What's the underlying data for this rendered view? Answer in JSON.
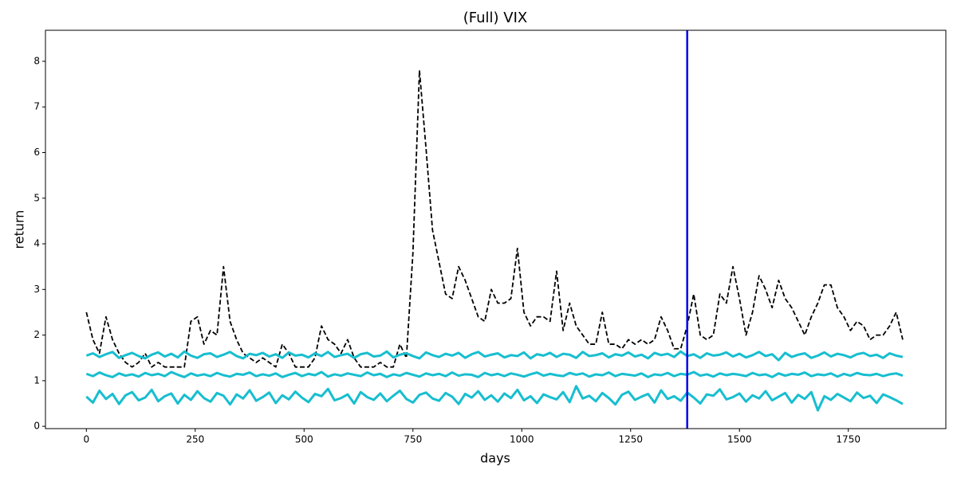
{
  "chart_data": {
    "type": "line",
    "title": "(Full) VIX",
    "xlabel": "days",
    "ylabel": "return",
    "xlim": [
      -94,
      1974
    ],
    "ylim": [
      -0.05,
      8.68
    ],
    "xticks": [
      0,
      250,
      500,
      750,
      1000,
      1250,
      1500,
      1750
    ],
    "yticks": [
      0,
      1,
      2,
      3,
      4,
      5,
      6,
      7,
      8
    ],
    "vline": 1380,
    "vline_color": "#0000ee",
    "x": [
      0,
      15,
      30,
      45,
      60,
      75,
      90,
      105,
      120,
      135,
      150,
      165,
      180,
      195,
      210,
      225,
      240,
      255,
      270,
      285,
      300,
      315,
      330,
      345,
      360,
      375,
      390,
      405,
      420,
      435,
      450,
      465,
      480,
      495,
      510,
      525,
      540,
      555,
      570,
      585,
      600,
      615,
      630,
      645,
      660,
      675,
      690,
      705,
      720,
      735,
      750,
      765,
      780,
      795,
      810,
      825,
      840,
      855,
      870,
      885,
      900,
      915,
      930,
      945,
      960,
      975,
      990,
      1005,
      1020,
      1035,
      1050,
      1065,
      1080,
      1095,
      1110,
      1125,
      1140,
      1155,
      1170,
      1185,
      1200,
      1215,
      1230,
      1245,
      1260,
      1275,
      1290,
      1305,
      1320,
      1335,
      1350,
      1365,
      1380,
      1395,
      1410,
      1425,
      1440,
      1455,
      1470,
      1485,
      1500,
      1515,
      1530,
      1545,
      1560,
      1575,
      1590,
      1605,
      1620,
      1635,
      1650,
      1665,
      1680,
      1695,
      1710,
      1725,
      1740,
      1755,
      1770,
      1785,
      1800,
      1815,
      1830,
      1845,
      1860,
      1875
    ],
    "series": [
      {
        "color": "#000000",
        "dashed": true,
        "values": [
          2.5,
          1.9,
          1.6,
          2.4,
          1.9,
          1.6,
          1.4,
          1.3,
          1.4,
          1.6,
          1.3,
          1.4,
          1.3,
          1.3,
          1.3,
          1.3,
          2.3,
          2.4,
          1.8,
          2.1,
          2.0,
          3.5,
          2.3,
          1.9,
          1.6,
          1.5,
          1.4,
          1.5,
          1.4,
          1.3,
          1.8,
          1.6,
          1.3,
          1.3,
          1.3,
          1.5,
          2.2,
          1.9,
          1.8,
          1.6,
          1.9,
          1.5,
          1.3,
          1.3,
          1.3,
          1.4,
          1.3,
          1.3,
          1.8,
          1.5,
          3.8,
          7.8,
          6.1,
          4.3,
          3.6,
          2.9,
          2.8,
          3.5,
          3.2,
          2.8,
          2.4,
          2.3,
          3.0,
          2.7,
          2.7,
          2.8,
          3.9,
          2.5,
          2.2,
          2.4,
          2.4,
          2.3,
          3.4,
          2.1,
          2.7,
          2.2,
          2.0,
          1.8,
          1.8,
          2.5,
          1.8,
          1.8,
          1.7,
          1.9,
          1.8,
          1.9,
          1.8,
          1.9,
          2.4,
          2.1,
          1.7,
          1.7,
          2.2,
          2.9,
          2.0,
          1.9,
          2.0,
          2.9,
          2.7,
          3.5,
          2.8,
          2.0,
          2.5,
          3.3,
          3.0,
          2.6,
          3.2,
          2.8,
          2.6,
          2.3,
          2.0,
          2.4,
          2.7,
          3.1,
          3.1,
          2.6,
          2.4,
          2.1,
          2.3,
          2.2,
          1.9,
          2.0,
          2.0,
          2.2,
          2.5,
          1.9
        ]
      },
      {
        "color": "#17becf",
        "values": [
          1.55,
          1.6,
          1.52,
          1.58,
          1.63,
          1.5,
          1.56,
          1.61,
          1.54,
          1.49,
          1.57,
          1.62,
          1.53,
          1.59,
          1.51,
          1.64,
          1.55,
          1.5,
          1.58,
          1.6,
          1.52,
          1.57,
          1.63,
          1.54,
          1.49,
          1.59,
          1.56,
          1.61,
          1.53,
          1.58,
          1.5,
          1.62,
          1.55,
          1.57,
          1.51,
          1.6,
          1.54,
          1.63,
          1.52,
          1.56,
          1.59,
          1.5,
          1.58,
          1.61,
          1.53,
          1.55,
          1.64,
          1.51,
          1.57,
          1.6,
          1.54,
          1.49,
          1.62,
          1.56,
          1.52,
          1.59,
          1.55,
          1.61,
          1.5,
          1.58,
          1.63,
          1.53,
          1.57,
          1.6,
          1.51,
          1.56,
          1.54,
          1.62,
          1.49,
          1.58,
          1.55,
          1.61,
          1.52,
          1.59,
          1.57,
          1.5,
          1.63,
          1.54,
          1.56,
          1.6,
          1.51,
          1.58,
          1.55,
          1.62,
          1.53,
          1.57,
          1.49,
          1.61,
          1.56,
          1.59,
          1.52,
          1.64,
          1.54,
          1.58,
          1.5,
          1.6,
          1.55,
          1.57,
          1.62,
          1.53,
          1.59,
          1.51,
          1.56,
          1.63,
          1.54,
          1.58,
          1.45,
          1.61,
          1.52,
          1.57,
          1.6,
          1.5,
          1.55,
          1.62,
          1.53,
          1.59,
          1.56,
          1.51,
          1.58,
          1.61,
          1.54,
          1.57,
          1.5,
          1.6,
          1.55,
          1.52
        ]
      },
      {
        "color": "#17becf",
        "values": [
          1.15,
          1.1,
          1.18,
          1.12,
          1.08,
          1.16,
          1.11,
          1.14,
          1.09,
          1.17,
          1.12,
          1.15,
          1.1,
          1.19,
          1.13,
          1.08,
          1.16,
          1.11,
          1.14,
          1.1,
          1.17,
          1.12,
          1.09,
          1.15,
          1.13,
          1.18,
          1.1,
          1.14,
          1.11,
          1.16,
          1.08,
          1.13,
          1.17,
          1.1,
          1.15,
          1.12,
          1.19,
          1.09,
          1.14,
          1.11,
          1.16,
          1.13,
          1.1,
          1.18,
          1.12,
          1.15,
          1.08,
          1.14,
          1.11,
          1.17,
          1.13,
          1.09,
          1.16,
          1.12,
          1.15,
          1.1,
          1.18,
          1.11,
          1.14,
          1.13,
          1.08,
          1.17,
          1.12,
          1.15,
          1.1,
          1.16,
          1.13,
          1.09,
          1.14,
          1.18,
          1.11,
          1.15,
          1.12,
          1.1,
          1.17,
          1.13,
          1.16,
          1.09,
          1.14,
          1.12,
          1.18,
          1.1,
          1.15,
          1.13,
          1.11,
          1.16,
          1.08,
          1.14,
          1.12,
          1.17,
          1.1,
          1.15,
          1.13,
          1.19,
          1.11,
          1.14,
          1.09,
          1.16,
          1.12,
          1.15,
          1.13,
          1.1,
          1.17,
          1.12,
          1.14,
          1.08,
          1.16,
          1.11,
          1.15,
          1.13,
          1.18,
          1.1,
          1.14,
          1.12,
          1.16,
          1.09,
          1.15,
          1.11,
          1.17,
          1.13,
          1.12,
          1.15,
          1.1,
          1.14,
          1.16,
          1.11
        ]
      },
      {
        "color": "#17becf",
        "values": [
          0.65,
          0.52,
          0.78,
          0.6,
          0.71,
          0.49,
          0.68,
          0.75,
          0.57,
          0.63,
          0.8,
          0.55,
          0.66,
          0.72,
          0.5,
          0.69,
          0.58,
          0.77,
          0.62,
          0.54,
          0.73,
          0.67,
          0.48,
          0.7,
          0.61,
          0.79,
          0.56,
          0.64,
          0.74,
          0.51,
          0.68,
          0.59,
          0.76,
          0.63,
          0.53,
          0.71,
          0.66,
          0.82,
          0.57,
          0.62,
          0.7,
          0.5,
          0.75,
          0.64,
          0.58,
          0.72,
          0.55,
          0.67,
          0.78,
          0.6,
          0.52,
          0.69,
          0.74,
          0.61,
          0.56,
          0.73,
          0.65,
          0.49,
          0.71,
          0.63,
          0.77,
          0.58,
          0.68,
          0.54,
          0.72,
          0.62,
          0.8,
          0.57,
          0.66,
          0.51,
          0.7,
          0.64,
          0.59,
          0.75,
          0.53,
          0.88,
          0.61,
          0.67,
          0.55,
          0.73,
          0.62,
          0.48,
          0.69,
          0.76,
          0.58,
          0.65,
          0.71,
          0.52,
          0.79,
          0.6,
          0.66,
          0.56,
          0.74,
          0.63,
          0.5,
          0.7,
          0.67,
          0.81,
          0.59,
          0.64,
          0.72,
          0.54,
          0.68,
          0.61,
          0.77,
          0.57,
          0.65,
          0.73,
          0.52,
          0.69,
          0.6,
          0.75,
          0.35,
          0.66,
          0.58,
          0.71,
          0.63,
          0.55,
          0.74,
          0.62,
          0.67,
          0.51,
          0.7,
          0.64,
          0.57,
          0.49
        ]
      }
    ]
  }
}
